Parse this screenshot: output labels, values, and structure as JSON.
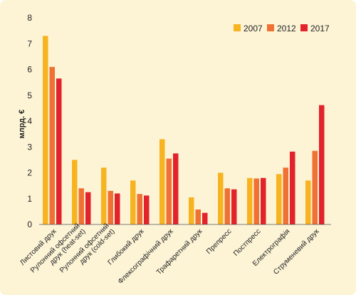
{
  "chart_data": {
    "type": "bar",
    "title": "",
    "xlabel": "",
    "ylabel": "млрд. €",
    "ylim": [
      0,
      8
    ],
    "yticks": [
      "0",
      "1",
      "2",
      "3",
      "4",
      "5",
      "6",
      "7",
      "8"
    ],
    "grid": false,
    "legend_position": "top-right",
    "background": "#fdf4d6",
    "categories": [
      "Листовий друк",
      "Рулонний офсетний друк (heat-set)",
      "Рулонний офсетний друк (cold-set)",
      "Глибокий друк",
      "Флексографічний друк",
      "Трафаретний друк",
      "Препресс",
      "Постпресс",
      "Електрографія",
      "Струменевий друк"
    ],
    "category_label_lines": [
      [
        "Листовий друк"
      ],
      [
        "Рулонний офсетний",
        "друк (heat-set)"
      ],
      [
        "Рулонний офсетний",
        "друк (cold-set)"
      ],
      [
        "Глибокий друк"
      ],
      [
        "Флексографічний друк"
      ],
      [
        "Трафаретний друк"
      ],
      [
        "Препресс"
      ],
      [
        "Постпресс"
      ],
      [
        "Електрографія"
      ],
      [
        "Струменевий друк"
      ]
    ],
    "series": [
      {
        "name": "2007",
        "color": "#f7b320",
        "values": [
          7.3,
          2.5,
          2.2,
          1.7,
          3.3,
          1.05,
          2.0,
          1.8,
          1.95,
          1.7
        ]
      },
      {
        "name": "2012",
        "color": "#ef7133",
        "values": [
          6.1,
          1.4,
          1.3,
          1.18,
          2.55,
          0.58,
          1.4,
          1.78,
          2.2,
          2.85
        ]
      },
      {
        "name": "2017",
        "color": "#e2232b",
        "values": [
          5.65,
          1.25,
          1.2,
          1.12,
          2.75,
          0.45,
          1.36,
          1.8,
          2.82,
          4.62
        ]
      }
    ]
  }
}
